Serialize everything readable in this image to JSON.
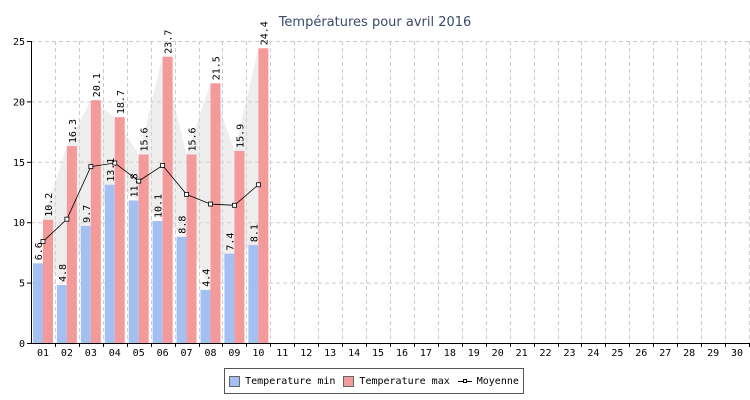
{
  "chart_data": {
    "type": "bar",
    "title": "Températures pour avril 2016",
    "xlabel": "",
    "ylabel": "",
    "ylim": [
      0,
      25
    ],
    "yticks": [
      0,
      5,
      10,
      15,
      20,
      25
    ],
    "grid": true,
    "legend_position": "bottom-center",
    "categories": [
      "01",
      "02",
      "03",
      "04",
      "05",
      "06",
      "07",
      "08",
      "09",
      "10",
      "11",
      "12",
      "13",
      "14",
      "15",
      "16",
      "17",
      "18",
      "19",
      "20",
      "21",
      "22",
      "23",
      "24",
      "25",
      "26",
      "27",
      "28",
      "29",
      "30"
    ],
    "series": [
      {
        "name": "Temperature min",
        "type": "bar",
        "color": "#a4bff2",
        "values": [
          6.6,
          4.8,
          9.7,
          13.1,
          11.8,
          10.1,
          8.8,
          4.4,
          7.4,
          8.1,
          null,
          null,
          null,
          null,
          null,
          null,
          null,
          null,
          null,
          null,
          null,
          null,
          null,
          null,
          null,
          null,
          null,
          null,
          null,
          null
        ]
      },
      {
        "name": "Temperature max",
        "type": "bar",
        "color": "#f59a9a",
        "values": [
          10.2,
          16.3,
          20.1,
          18.7,
          15.6,
          23.7,
          15.6,
          21.5,
          15.9,
          24.4,
          null,
          null,
          null,
          null,
          null,
          null,
          null,
          null,
          null,
          null,
          null,
          null,
          null,
          null,
          null,
          null,
          null,
          null,
          null,
          null
        ]
      },
      {
        "name": "Moyenne",
        "type": "line",
        "color": "#000000",
        "values": [
          8.4,
          10.25,
          14.6,
          14.9,
          13.4,
          14.7,
          12.3,
          11.5,
          11.4,
          13.1,
          null,
          null,
          null,
          null,
          null,
          null,
          null,
          null,
          null,
          null,
          null,
          null,
          null,
          null,
          null,
          null,
          null,
          null,
          null,
          null
        ]
      }
    ]
  }
}
